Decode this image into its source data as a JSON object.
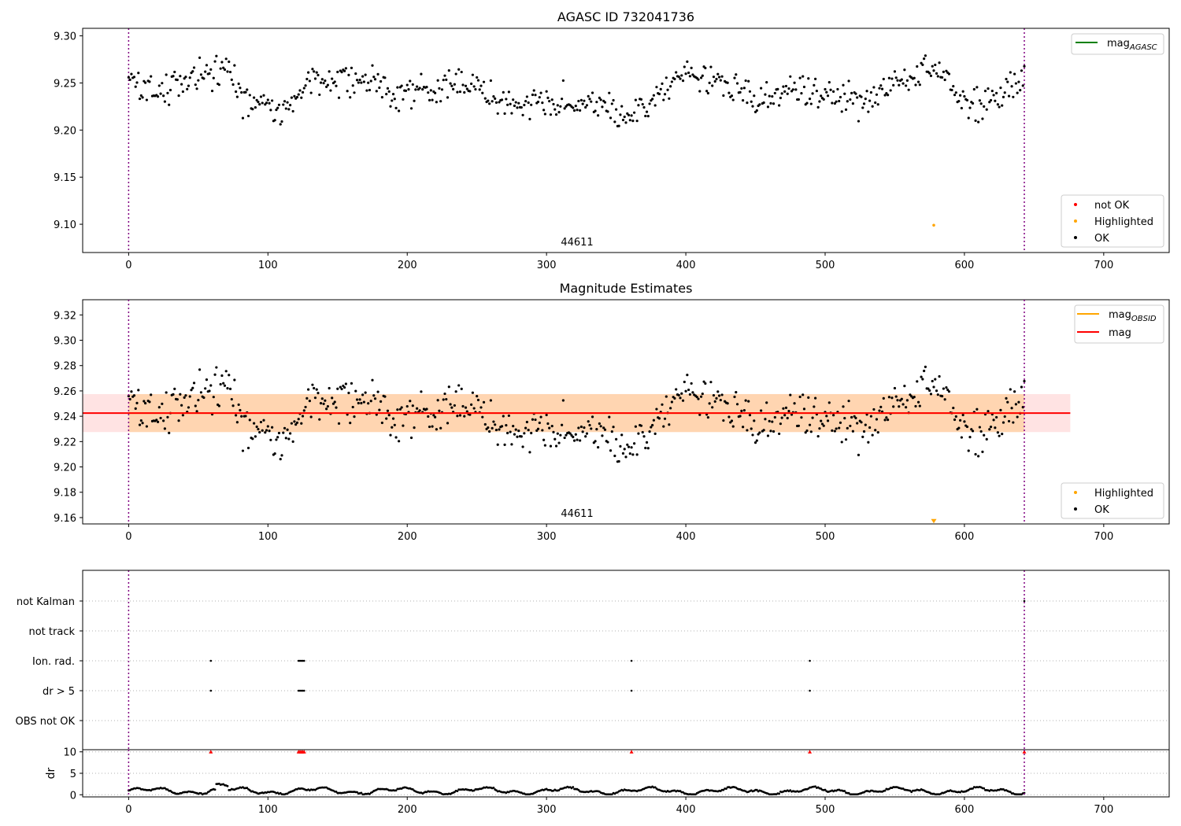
{
  "chart_data": [
    {
      "type": "scatter",
      "title": "AGASC ID 732041736",
      "xlim": [
        -33,
        747
      ],
      "ylim": [
        9.07,
        9.308
      ],
      "xticks": [
        0,
        100,
        200,
        300,
        400,
        500,
        600,
        700
      ],
      "yticks": [
        9.1,
        9.15,
        9.2,
        9.25,
        9.3
      ],
      "ytick_labels": [
        "9.10",
        "9.15",
        "9.20",
        "9.25",
        "9.30"
      ],
      "obs_bounds": [
        0,
        643
      ],
      "obsid_label": "44611",
      "legend_lines": [
        {
          "label_base": "mag",
          "label_sub": "AGASC",
          "color": "#008000"
        }
      ],
      "legend_markers": [
        {
          "label": "not OK",
          "color": "#ff0000"
        },
        {
          "label": "Highlighted",
          "color": "#ffa500"
        },
        {
          "label": "OK",
          "color": "#000000"
        }
      ],
      "highlighted_points": [
        {
          "x": 578,
          "y": 9.099
        }
      ],
      "ok_series": {
        "description": "approx. values read from plot",
        "anchors_x": [
          0,
          10,
          20,
          35,
          50,
          62,
          70,
          80,
          90,
          100,
          108,
          118,
          130,
          145,
          160,
          175,
          185,
          200,
          215,
          230,
          245,
          258,
          270,
          285,
          300,
          315,
          330,
          345,
          355,
          365,
          380,
          395,
          410,
          420,
          435,
          450,
          470,
          485,
          495,
          510,
          520,
          530,
          545,
          560,
          575,
          585,
          595,
          605,
          620,
          630,
          643
        ],
        "anchors_y": [
          9.253,
          9.243,
          9.236,
          9.25,
          9.254,
          9.264,
          9.265,
          9.236,
          9.228,
          9.229,
          9.216,
          9.231,
          9.25,
          9.255,
          9.255,
          9.255,
          9.242,
          9.241,
          9.24,
          9.247,
          9.248,
          9.236,
          9.228,
          9.226,
          9.235,
          9.23,
          9.229,
          9.226,
          9.215,
          9.22,
          9.24,
          9.255,
          9.257,
          9.256,
          9.245,
          9.233,
          9.24,
          9.238,
          9.235,
          9.24,
          9.235,
          9.228,
          9.245,
          9.255,
          9.265,
          9.262,
          9.238,
          9.228,
          9.232,
          9.24,
          9.262
        ]
      }
    },
    {
      "type": "scatter",
      "title": "Magnitude Estimates",
      "xlim": [
        -33,
        747
      ],
      "ylim": [
        9.155,
        9.332
      ],
      "xticks": [
        0,
        100,
        200,
        300,
        400,
        500,
        600,
        700
      ],
      "yticks": [
        9.16,
        9.18,
        9.2,
        9.22,
        9.24,
        9.26,
        9.28,
        9.3,
        9.32
      ],
      "ytick_labels": [
        "9.16",
        "9.18",
        "9.20",
        "9.22",
        "9.24",
        "9.26",
        "9.28",
        "9.30",
        "9.32"
      ],
      "obs_bounds": [
        0,
        643
      ],
      "obsid_label": "44611",
      "mag_line": 9.2425,
      "mag_band": [
        9.2275,
        9.2575
      ],
      "mag_band_x": [
        -33,
        676
      ],
      "obsid_band_x": [
        0,
        643
      ],
      "legend_lines": [
        {
          "label_base": "mag",
          "label_sub": "OBSID",
          "color": "#ffa500"
        },
        {
          "label_base": "mag",
          "label_sub": "",
          "color": "#ff0000"
        }
      ],
      "legend_markers": [
        {
          "label": "Highlighted",
          "color": "#ffa500"
        },
        {
          "label": "OK",
          "color": "#000000"
        }
      ],
      "highlighted_points": [
        {
          "x": 578,
          "y": 9.157
        }
      ]
    },
    {
      "type": "scatter",
      "flag_rows": [
        "not Kalman",
        "not track",
        "Ion. rad.",
        "dr > 5",
        "OBS not OK"
      ],
      "flag_events": [
        {
          "row": "not Kalman",
          "x": [
            643
          ]
        },
        {
          "row": "Ion. rad.",
          "x": [
            59,
            122,
            123,
            124,
            125,
            126,
            361,
            489
          ]
        },
        {
          "row": "dr > 5",
          "x": [
            59,
            122,
            123,
            124,
            125,
            126,
            361,
            489
          ]
        }
      ],
      "obs_bounds": [
        0,
        643
      ]
    },
    {
      "type": "scatter",
      "ylabel": "dr",
      "xlim": [
        -33,
        747
      ],
      "ylim": [
        -0.5,
        10.5
      ],
      "xticks": [
        0,
        100,
        200,
        300,
        400,
        500,
        600,
        700
      ],
      "yticks": [
        0,
        5,
        10
      ],
      "ytick_labels": [
        "0",
        "5",
        "10"
      ],
      "obs_bounds": [
        0,
        643
      ],
      "outliers": [
        {
          "x": 59,
          "y": 10
        },
        {
          "x": 122,
          "y": 10
        },
        {
          "x": 123,
          "y": 10
        },
        {
          "x": 124,
          "y": 10
        },
        {
          "x": 125,
          "y": 10
        },
        {
          "x": 126,
          "y": 10
        },
        {
          "x": 361,
          "y": 10
        },
        {
          "x": 489,
          "y": 10
        },
        {
          "x": 643,
          "y": 10
        }
      ]
    }
  ]
}
